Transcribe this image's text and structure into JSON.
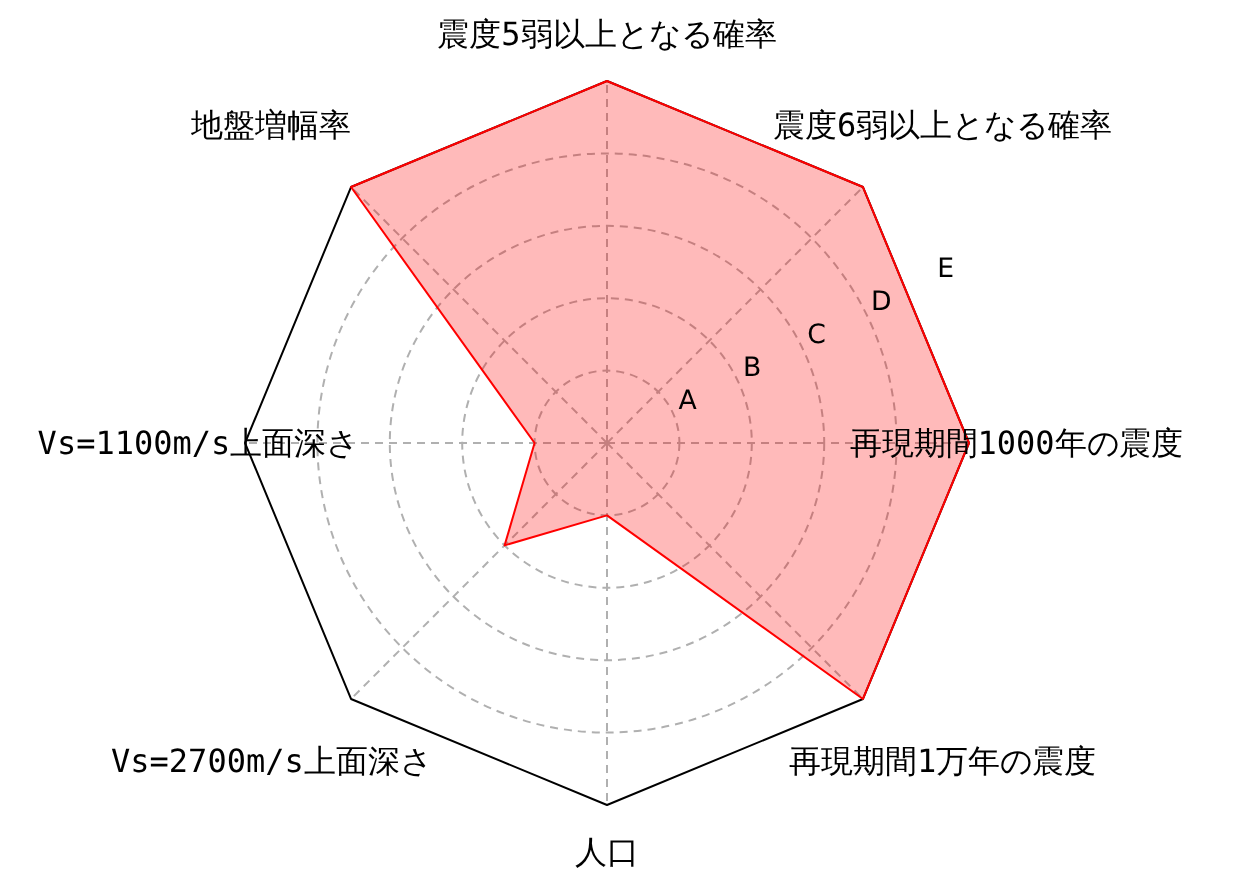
{
  "chart_data": {
    "type": "radar",
    "categories": [
      "震度5弱以上となる確率",
      "震度6弱以上となる確率",
      "再現期間1000年の震度",
      "再現期間1万年の震度",
      "人口",
      "Vs=2700m/s上面深さ",
      "Vs=1100m/s上面深さ",
      "地盤増幅率"
    ],
    "series": [
      {
        "color": "#ff0000",
        "values": [
          5,
          5,
          5,
          5,
          1,
          2,
          1,
          5
        ]
      }
    ],
    "ylim": [
      0,
      5
    ],
    "yticks": [
      {
        "value": 1,
        "label": "A"
      },
      {
        "value": 2,
        "label": "B"
      },
      {
        "value": 3,
        "label": "C"
      },
      {
        "value": 4,
        "label": "D"
      },
      {
        "value": 5,
        "label": "E"
      }
    ],
    "grid": true
  }
}
